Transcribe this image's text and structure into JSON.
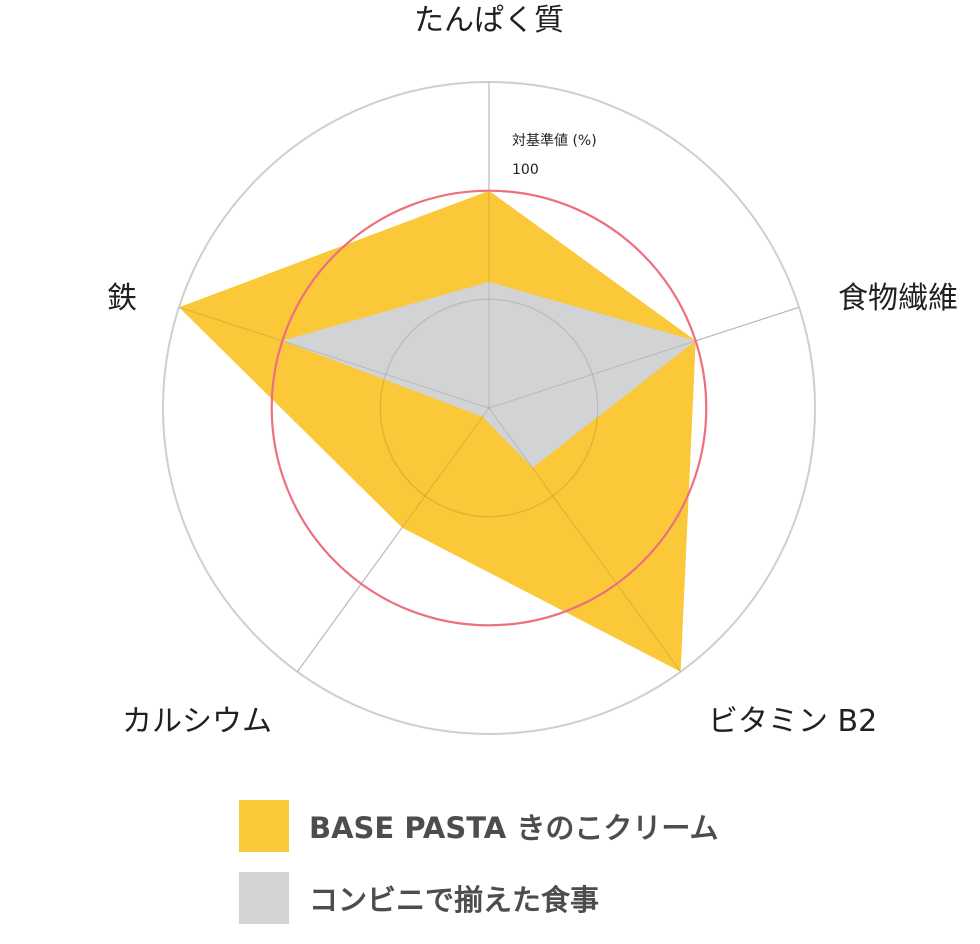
{
  "chart_data": {
    "type": "radar",
    "axes": [
      "たんぱく質",
      "食物繊維",
      "ビタミン B2",
      "カルシウム",
      "鉄"
    ],
    "scale_title": "対基準値 (%)",
    "scale_reference_label": "100",
    "reference_value": 100,
    "r_max": 150,
    "series": [
      {
        "name": "BASE PASTA きのこクリーム",
        "values": [
          100,
          100,
          150,
          68,
          150
        ],
        "color": "#fbc83a"
      },
      {
        "name": "コンビニで揃えた食事",
        "values": [
          58,
          100,
          34,
          5,
          100
        ],
        "color": "#d1d3d4"
      }
    ],
    "grid_rings": [
      50,
      150
    ],
    "reference_ring_color": "#ee6f7d",
    "grid_color": "#cfcfcf",
    "legend_position": "bottom"
  }
}
